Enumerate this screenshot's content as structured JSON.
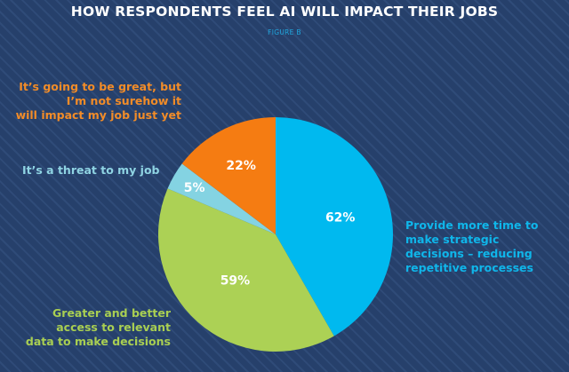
{
  "chart_data": {
    "type": "pie",
    "title": "HOW RESPONDENTS FEEL AI WILL IMPACT THEIR JOBS",
    "subtitle": "FIGURE B",
    "slices": [
      {
        "name": "Provide more time to make strategic decisions – reducing repetitive processes",
        "label_lines": [
          "Provide more time to",
          "make strategic",
          "decisions – reducing",
          "repetitive processes"
        ],
        "value": 62,
        "value_label": "62%",
        "color": "#00b9ef",
        "legend_color": "#0fb6ea",
        "angle_share": 0.417
      },
      {
        "name": "Greater and better access to relevant data to make decisions",
        "label_lines": [
          "Greater and better",
          "access to relevant",
          "data to make decisions"
        ],
        "value": 59,
        "value_label": "59%",
        "color": "#acd155",
        "legend_color": "#a9cf52",
        "angle_share": 0.397
      },
      {
        "name": "It's a threat to my job",
        "label_lines": [
          "It’s a threat to my job"
        ],
        "value": 5,
        "value_label": "5%",
        "color": "#84d3e2",
        "legend_color": "#8fd4e3",
        "angle_share": 0.039
      },
      {
        "name": "It's going to be great, but I'm not surehow it will impact my job just yet",
        "label_lines": [
          "It’s going to be great, but",
          "I’m not surehow it",
          "will impact my job just yet"
        ],
        "value": 22,
        "value_label": "22%",
        "color": "#f57c12",
        "legend_color": "#f28c28",
        "angle_share": 0.147
      }
    ],
    "start_angle": "12 o'clock",
    "direction": "clockwise",
    "legend": "labels placed beside slices"
  }
}
